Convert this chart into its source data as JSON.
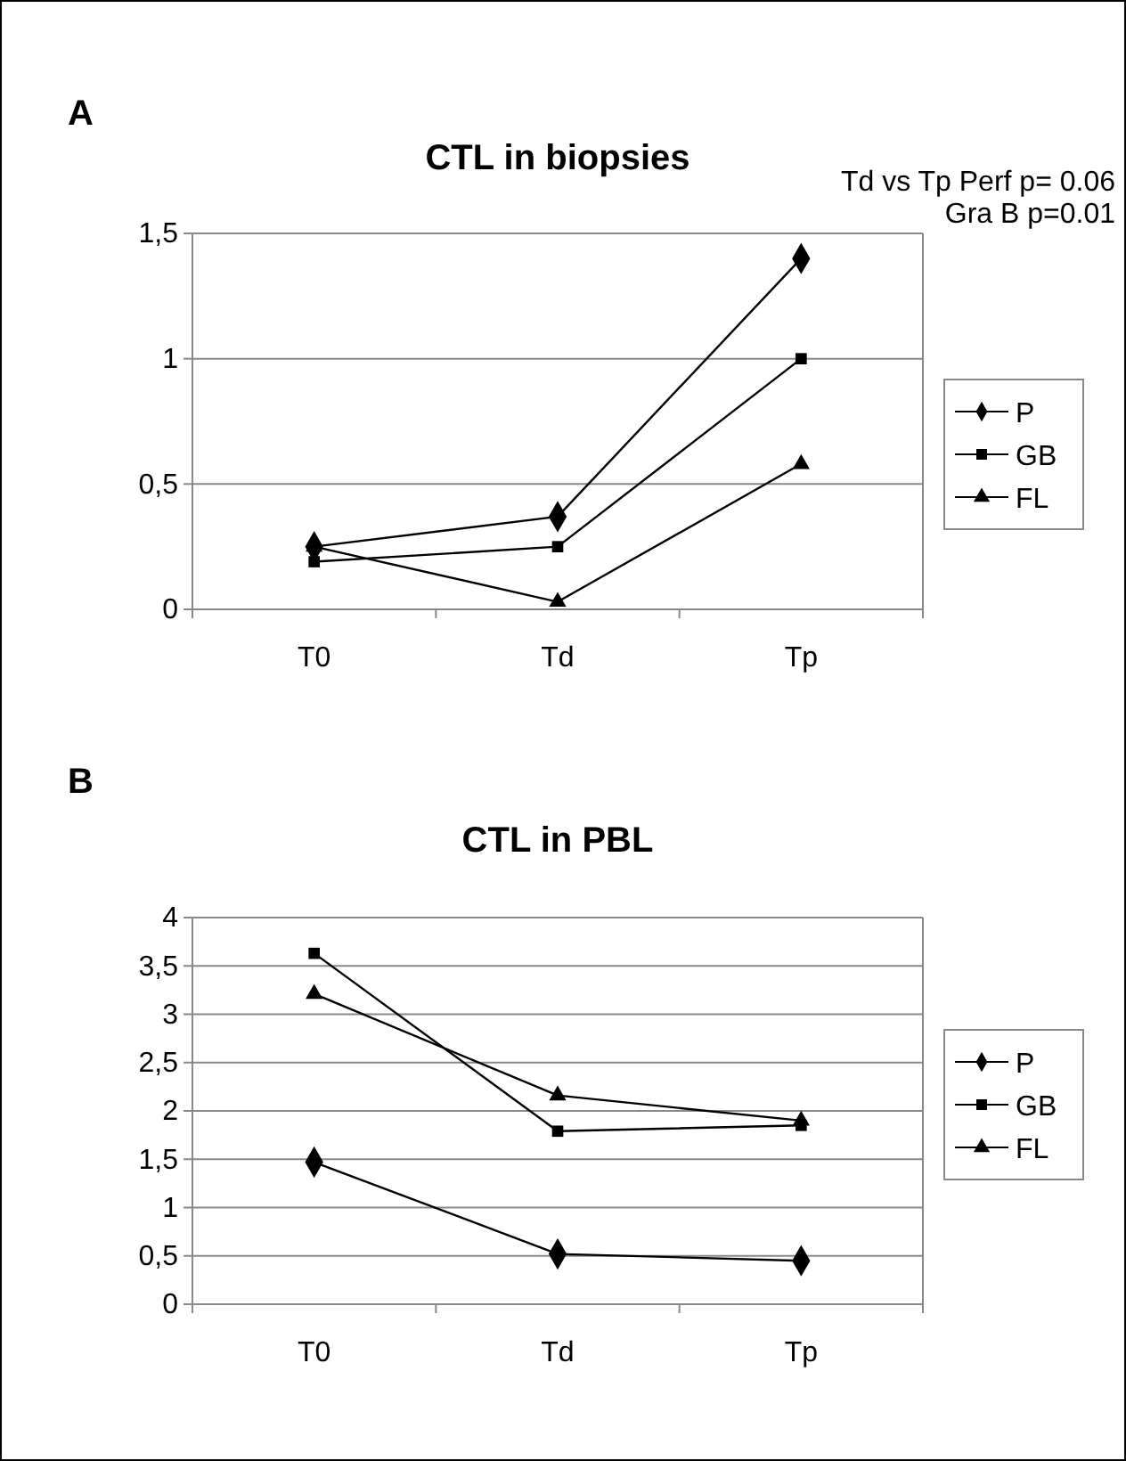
{
  "chart_data": [
    {
      "type": "line",
      "title": "CTL in biopsies",
      "annotations": [
        "A",
        "Td vs Tp   Perf p= 0.06",
        "Gra B p=0.01"
      ],
      "categories": [
        "T0",
        "Td",
        "Tp"
      ],
      "series": [
        {
          "name": "P",
          "color": "#000000",
          "marker": "diamond",
          "values": [
            0.25,
            0.37,
            1.4
          ]
        },
        {
          "name": "GB",
          "color": "#000000",
          "marker": "square",
          "values": [
            0.19,
            0.25,
            1.0
          ]
        },
        {
          "name": "FL",
          "color": "#000000",
          "marker": "triangle",
          "values": [
            0.25,
            0.03,
            0.58
          ]
        }
      ],
      "ylim": [
        0,
        1.5
      ],
      "yticks": [
        0,
        {
          "value": 0.5,
          "label": "0,5"
        },
        1,
        {
          "value": 1.5,
          "label": "1,5"
        }
      ],
      "grid": "y",
      "legend": "right",
      "line_style": "solid"
    },
    {
      "type": "line",
      "title": "CTL in PBL",
      "annotations": [
        "B"
      ],
      "categories": [
        "T0",
        "Td",
        "Tp"
      ],
      "series": [
        {
          "name": "P",
          "color": "#000000",
          "marker": "diamond",
          "values": [
            1.47,
            0.52,
            0.45
          ]
        },
        {
          "name": "GB",
          "color": "#000000",
          "marker": "square",
          "values": [
            3.63,
            1.79,
            1.85
          ]
        },
        {
          "name": "FL",
          "color": "#000000",
          "marker": "triangle",
          "values": [
            3.21,
            2.16,
            1.9
          ]
        }
      ],
      "ylim": [
        0,
        4
      ],
      "yticks": [
        0,
        {
          "value": 0.5,
          "label": "0,5"
        },
        1,
        {
          "value": 1.5,
          "label": "1,5"
        },
        2,
        {
          "value": 2.5,
          "label": "2,5"
        },
        3,
        {
          "value": 3.5,
          "label": "3,5"
        },
        4
      ],
      "grid": "y",
      "legend": "right",
      "line_style": "solid"
    }
  ]
}
